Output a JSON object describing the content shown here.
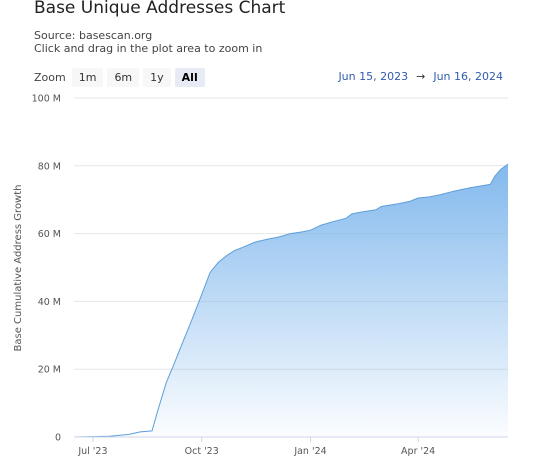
{
  "header": {
    "title": "Base Unique Addresses Chart",
    "source": "Source: basescan.org",
    "hint": "Click and drag in the plot area to zoom in"
  },
  "zoom": {
    "label": "Zoom",
    "buttons": [
      {
        "label": "1m",
        "active": false
      },
      {
        "label": "6m",
        "active": false
      },
      {
        "label": "1y",
        "active": false
      },
      {
        "label": "All",
        "active": true
      }
    ]
  },
  "range": {
    "from": "Jun 15, 2023",
    "arrow": "→",
    "to": "Jun 16, 2024"
  },
  "colors": {
    "area_top": "#7cb5ec",
    "line": "#5e9fd8",
    "grid": "#e6e6e6"
  },
  "chart_data": {
    "type": "area",
    "title": "Base Unique Addresses Chart",
    "xlabel": "",
    "ylabel": "Base Cumulative Address Growth",
    "x_range": [
      "2023-06-15",
      "2024-06-16"
    ],
    "ylim": [
      0,
      100000000
    ],
    "y_ticks": [
      0,
      20000000,
      40000000,
      60000000,
      80000000,
      100000000
    ],
    "y_tick_labels": [
      "0",
      "20 M",
      "40 M",
      "60 M",
      "80 M",
      "100 M"
    ],
    "x_ticks": [
      "2023-07-01",
      "2023-10-01",
      "2024-01-01",
      "2024-04-01"
    ],
    "x_tick_labels": [
      "Jul '23",
      "Oct '23",
      "Jan '24",
      "Apr '24"
    ],
    "grid": true,
    "legend": "none",
    "series": [
      {
        "x": [
          "2023-06-15",
          "2023-07-15",
          "2023-08-01",
          "2023-08-10",
          "2023-08-20",
          "2023-08-25",
          "2023-09-01",
          "2023-09-07",
          "2023-09-15",
          "2023-09-22",
          "2023-10-01",
          "2023-10-08",
          "2023-10-15",
          "2023-10-22",
          "2023-10-29",
          "2023-11-05",
          "2023-11-15",
          "2023-11-25",
          "2023-12-05",
          "2023-12-15",
          "2023-12-25",
          "2024-01-01",
          "2024-01-10",
          "2024-01-20",
          "2024-01-31",
          "2024-02-05",
          "2024-02-15",
          "2024-02-25",
          "2024-03-01",
          "2024-03-15",
          "2024-03-25",
          "2024-04-01",
          "2024-04-10",
          "2024-04-20",
          "2024-05-01",
          "2024-05-15",
          "2024-06-01",
          "2024-06-05",
          "2024-06-10",
          "2024-06-16"
        ],
        "values": [
          0,
          200000,
          800000,
          1500000,
          1800000,
          8000000,
          16000000,
          21000000,
          28000000,
          34000000,
          42000000,
          48500000,
          51500000,
          53500000,
          55000000,
          56000000,
          57500000,
          58300000,
          59000000,
          60000000,
          60500000,
          61000000,
          62500000,
          63500000,
          64500000,
          65800000,
          66500000,
          67000000,
          68000000,
          68800000,
          69500000,
          70500000,
          70800000,
          71500000,
          72500000,
          73500000,
          74500000,
          77000000,
          79000000,
          80500000
        ]
      }
    ]
  }
}
